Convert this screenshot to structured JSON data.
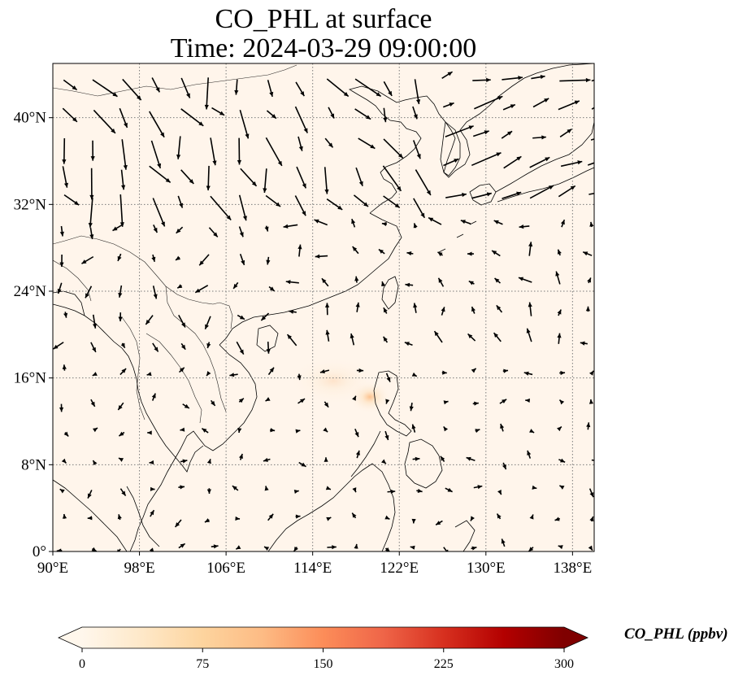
{
  "title": {
    "line1": "CO_PHL at surface",
    "line2": "Time: 2024-03-29 09:00:00"
  },
  "map": {
    "extent": {
      "lon_min": 90,
      "lon_max": 140,
      "lat_min": 0,
      "lat_max": 45
    },
    "lon_ticks": [
      {
        "value": 90,
        "label": "90°E"
      },
      {
        "value": 98,
        "label": "98°E"
      },
      {
        "value": 106,
        "label": "106°E"
      },
      {
        "value": 114,
        "label": "114°E"
      },
      {
        "value": 122,
        "label": "122°E"
      },
      {
        "value": 130,
        "label": "130°E"
      },
      {
        "value": 138,
        "label": "138°E"
      }
    ],
    "lat_ticks": [
      {
        "value": 0,
        "label": "0°"
      },
      {
        "value": 8,
        "label": "8°N"
      },
      {
        "value": 16,
        "label": "16°N"
      },
      {
        "value": 24,
        "label": "24°N"
      },
      {
        "value": 32,
        "label": "32°N"
      },
      {
        "value": 40,
        "label": "40°N"
      }
    ],
    "gridlines": true,
    "background_color": "#fff5eb",
    "coastline_color": "#000000",
    "plume": {
      "center_lon": 119.4,
      "center_lat": 14.5,
      "peak_ppbv": 45
    },
    "wind_vectors": "surface wind arrows, predominantly northerly in north, weak elsewhere"
  },
  "colorbar": {
    "label": "CO_PHL (ppbv)",
    "min": 0,
    "max": 300,
    "ticks": [
      "0",
      "75",
      "150",
      "225",
      "300"
    ],
    "colormap": "OrRd",
    "colors": [
      "#fff7ec",
      "#fee8c8",
      "#fdd49e",
      "#fdbb84",
      "#fc8d59",
      "#ef6548",
      "#d7301f",
      "#b30000",
      "#7f0000"
    ],
    "extend": "both"
  }
}
